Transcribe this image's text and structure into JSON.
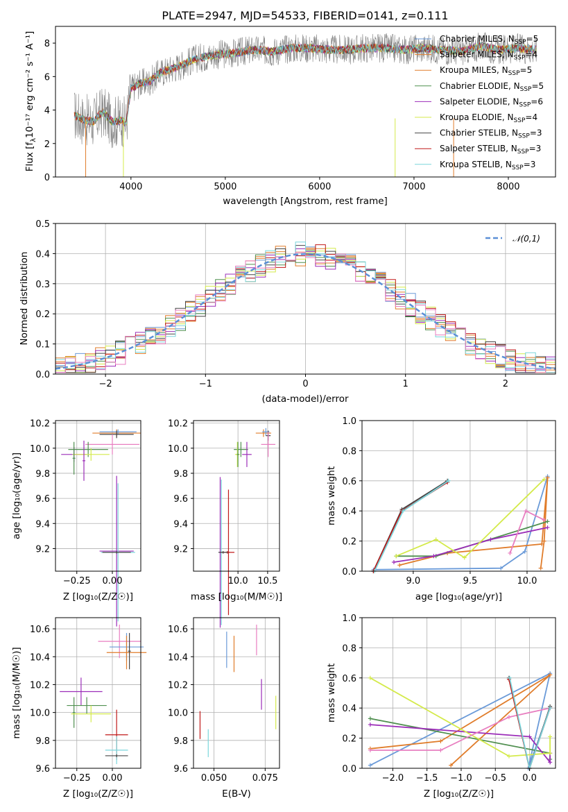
{
  "title": "PLATE=2947, MJD=54533, FIBERID=0141, z=0.111",
  "colors": {
    "Chabrier MILES": "#6a9ad8",
    "Salpeter MILES": "#e07c2a",
    "Kroupa MILES": "#e07c2a",
    "Chabrier ELODIE": "#4f8f4f",
    "Salpeter ELODIE": "#9b2cb8",
    "Kroupa ELODIE": "#d4ea4a",
    "Chabrier STELIB": "#444444",
    "Salpeter STELIB": "#c01818",
    "Kroupa STELIB": "#7ad6dc",
    "spectrum": "#808080",
    "normal": "#5b8fd6"
  },
  "chart_data": [
    {
      "id": "spectrum",
      "type": "line",
      "title": "PLATE=2947, MJD=54533, FIBERID=0141, z=0.111",
      "xlabel": "wavelength [Angstrom, rest frame]",
      "ylabel_main": "Flux [f",
      "ylabel_sub": "λ",
      "ylabel_tail": "10⁻¹⁷ erg cm⁻² s⁻¹ A⁻¹]",
      "xlim": [
        3200,
        8500
      ],
      "ylim": [
        0,
        9
      ],
      "xticks": [
        "4000",
        "5000",
        "6000",
        "7000",
        "8000"
      ],
      "yticks": [
        "0",
        "2",
        "4",
        "6",
        "8"
      ],
      "legend_position": "top-right",
      "legend": [
        {
          "prefix": "Chabrier MILES, N",
          "sub": "SSP",
          "suffix": "=5",
          "color": "#6a9ad8"
        },
        {
          "prefix": "Salpeter MILES, N",
          "sub": "SSP",
          "suffix": "=4",
          "color": "#e07c2a"
        },
        {
          "prefix": "Kroupa MILES, N",
          "sub": "SSP",
          "suffix": "=5",
          "color": "#e07c2a"
        },
        {
          "prefix": "Chabrier ELODIE, N",
          "sub": "SSP",
          "suffix": "=5",
          "color": "#4f8f4f"
        },
        {
          "prefix": "Salpeter ELODIE, N",
          "sub": "SSP",
          "suffix": "=6",
          "color": "#9b2cb8"
        },
        {
          "prefix": "Kroupa ELODIE, N",
          "sub": "SSP",
          "suffix": "=4",
          "color": "#d4ea4a"
        },
        {
          "prefix": "Chabrier STELIB, N",
          "sub": "SSP",
          "suffix": "=3",
          "color": "#444444"
        },
        {
          "prefix": "Salpeter STELIB, N",
          "sub": "SSP",
          "suffix": "=3",
          "color": "#c01818"
        },
        {
          "prefix": "Kroupa STELIB, N",
          "sub": "SSP",
          "suffix": "=3",
          "color": "#7ad6dc"
        }
      ],
      "data_envelope": {
        "x": [
          3400,
          3500,
          3600,
          3700,
          3800,
          3900,
          3950,
          4000,
          4100,
          4200,
          4300,
          4500,
          4700,
          4900,
          5100,
          5300,
          5500,
          5700,
          5900,
          6100,
          6300,
          6500,
          6700,
          6900,
          7100,
          7300,
          7500,
          7700,
          7900,
          8100,
          8300
        ],
        "y": [
          3.7,
          3.4,
          3.3,
          3.9,
          3.3,
          3.4,
          3.2,
          5.3,
          5.6,
          5.7,
          6.2,
          6.6,
          7.1,
          7.3,
          7.4,
          7.6,
          7.5,
          7.7,
          7.7,
          7.6,
          7.6,
          7.7,
          7.7,
          7.6,
          7.7,
          7.6,
          7.5,
          7.8,
          7.6,
          7.7,
          7.6
        ]
      }
    },
    {
      "id": "residuals",
      "type": "bar",
      "xlabel": "(data-model)/error",
      "ylabel": "Normed distribution",
      "xlim": [
        -2.5,
        2.5
      ],
      "ylim": [
        0,
        0.5
      ],
      "xticks": [
        "−2",
        "−1",
        "0",
        "1",
        "2"
      ],
      "yticks": [
        "0.0",
        "0.1",
        "0.2",
        "0.3",
        "0.4",
        "0.5"
      ],
      "legend_label": "𝒩(0,1)",
      "legend_position": "top-right",
      "bin_width": 0.1,
      "grid": true
    },
    {
      "id": "age_vs_Z",
      "type": "scatter",
      "xlabel": "Z [log₁₀(Z/Z☉)]",
      "ylabel": "age  [log₁₀(age/yr)]",
      "xlim": [
        -0.4,
        0.2
      ],
      "ylim": [
        9.02,
        10.22
      ],
      "xticks": [
        "−0.25",
        "0.00"
      ],
      "xtick_vals": [
        -0.25,
        0.0
      ],
      "yticks": [
        "9.2",
        "9.4",
        "9.6",
        "9.8",
        "10.0",
        "10.2"
      ],
      "ytick_vals": [
        9.2,
        9.4,
        9.6,
        9.8,
        10.0,
        10.2
      ],
      "points": [
        {
          "x": 0.03,
          "y": 10.12,
          "xerr": 0.17,
          "yerr": 0.03,
          "color": "#e07c2a"
        },
        {
          "x": 0.04,
          "y": 10.13,
          "xerr": 0.13,
          "yerr": 0.02,
          "color": "#6a9ad8"
        },
        {
          "x": 0.03,
          "y": 10.11,
          "xerr": 0.12,
          "yerr": 0.03,
          "color": "#444444"
        },
        {
          "x": 0.0,
          "y": 10.03,
          "xerr": 0.19,
          "yerr": 0.08,
          "color": "#e87ec0"
        },
        {
          "x": -0.17,
          "y": 9.99,
          "xerr": 0.14,
          "yerr": 0.06,
          "color": "#4f8f4f"
        },
        {
          "x": -0.27,
          "y": 9.95,
          "xerr": 0.09,
          "yerr": 0.06,
          "color": "#9b2cb8"
        },
        {
          "x": -0.15,
          "y": 9.95,
          "xerr": 0.13,
          "yerr": 0.05,
          "color": "#d4ea4a"
        },
        {
          "x": -0.27,
          "y": 9.92,
          "xerr": 0.01,
          "yerr": 0.13,
          "color": "#4f8f4f"
        },
        {
          "x": -0.2,
          "y": 9.9,
          "xerr": 0.01,
          "yerr": 0.16,
          "color": "#9b2cb8"
        },
        {
          "x": 0.03,
          "y": 9.18,
          "xerr": 0.12,
          "yerr": 0.6,
          "color": "#9b2cb8"
        },
        {
          "x": 0.04,
          "y": 9.17,
          "xerr": 0.12,
          "yerr": 0.55,
          "color": "#7ad6dc"
        },
        {
          "x": 0.03,
          "y": 9.17,
          "xerr": 0.1,
          "yerr": 0.01,
          "color": "#444444"
        }
      ]
    },
    {
      "id": "age_vs_mass",
      "type": "scatter",
      "xlabel": "mass [log₁₀(M/M☉)]",
      "ylabel": "",
      "xlim": [
        9.25,
        10.7
      ],
      "ylim": [
        9.02,
        10.22
      ],
      "xticks": [
        "10.0",
        "10.5"
      ],
      "xtick_vals": [
        10.0,
        10.5
      ],
      "yticks": [
        "9.2",
        "9.4",
        "9.6",
        "9.8",
        "10.0",
        "10.2"
      ],
      "ytick_vals": [
        9.2,
        9.4,
        9.6,
        9.8,
        10.0,
        10.2
      ],
      "points": [
        {
          "x": 10.43,
          "y": 10.12,
          "xerr": 0.13,
          "yerr": 0.03,
          "color": "#e07c2a"
        },
        {
          "x": 10.47,
          "y": 10.13,
          "xerr": 0.06,
          "yerr": 0.03,
          "color": "#6a9ad8"
        },
        {
          "x": 10.51,
          "y": 10.1,
          "xerr": 0.04,
          "yerr": 0.04,
          "color": "#444444"
        },
        {
          "x": 10.51,
          "y": 10.03,
          "xerr": 0.12,
          "yerr": 0.1,
          "color": "#e87ec0"
        },
        {
          "x": 10.05,
          "y": 9.99,
          "xerr": 0.12,
          "yerr": 0.06,
          "color": "#4f8f4f"
        },
        {
          "x": 10.15,
          "y": 9.95,
          "xerr": 0.08,
          "yerr": 0.1,
          "color": "#9b2cb8"
        },
        {
          "x": 9.99,
          "y": 9.95,
          "xerr": 0.04,
          "yerr": 0.1,
          "color": "#d4ea4a"
        },
        {
          "x": 10.0,
          "y": 9.95,
          "xerr": 0.02,
          "yerr": 0.1,
          "color": "#4f8f4f"
        },
        {
          "x": 9.7,
          "y": 9.17,
          "xerr": 0.02,
          "yerr": 0.6,
          "color": "#9b2cb8"
        },
        {
          "x": 9.72,
          "y": 9.17,
          "xerr": 0.02,
          "yerr": 0.58,
          "color": "#7ad6dc"
        },
        {
          "x": 9.84,
          "y": 9.17,
          "xerr": 0.02,
          "yerr": 0.5,
          "color": "#c01818"
        },
        {
          "x": 9.82,
          "y": 9.17,
          "xerr": 0.12,
          "yerr": 0.01,
          "color": "#c01818"
        },
        {
          "x": 9.75,
          "y": 9.17,
          "xerr": 0.08,
          "yerr": 0.01,
          "color": "#444444"
        }
      ]
    },
    {
      "id": "weight_vs_age",
      "type": "line",
      "xlabel": "age  [log₁₀(age/yr)]",
      "ylabel": "mass weight",
      "xlim": [
        8.55,
        10.25
      ],
      "ylim": [
        0,
        1
      ],
      "xticks": [
        "9.0",
        "9.5",
        "10.0"
      ],
      "xtick_vals": [
        9.0,
        9.5,
        10.0
      ],
      "yticks": [
        "0.0",
        "0.2",
        "0.4",
        "0.6",
        "0.8",
        "1.0"
      ],
      "ytick_vals": [
        0.0,
        0.2,
        0.4,
        0.6,
        0.8,
        1.0
      ],
      "series": [
        {
          "color": "#6a9ad8",
          "x": [
            8.65,
            9.77,
            9.98,
            10.18
          ],
          "y": [
            0.01,
            0.02,
            0.13,
            0.63
          ]
        },
        {
          "color": "#e07c2a",
          "x": [
            8.88,
            9.3,
            10.13,
            10.18
          ],
          "y": [
            0.04,
            0.12,
            0.18,
            0.62
          ]
        },
        {
          "color": "#e07c2a",
          "x": [
            10.12,
            10.15,
            10.18
          ],
          "y": [
            0.02,
            0.2,
            0.62
          ]
        },
        {
          "color": "#4f8f4f",
          "x": [
            8.85,
            9.2,
            10.18
          ],
          "y": [
            0.1,
            0.1,
            0.33
          ]
        },
        {
          "color": "#9b2cb8",
          "x": [
            8.83,
            9.18,
            9.68,
            10.18
          ],
          "y": [
            0.06,
            0.1,
            0.21,
            0.29
          ]
        },
        {
          "color": "#d4ea4a",
          "x": [
            8.85,
            9.2,
            9.45,
            10.15
          ],
          "y": [
            0.1,
            0.21,
            0.09,
            0.61
          ]
        },
        {
          "color": "#e87ec0",
          "x": [
            9.85,
            9.99,
            10.15
          ],
          "y": [
            0.12,
            0.4,
            0.34
          ]
        },
        {
          "color": "#444444",
          "x": [
            8.65,
            8.9,
            9.3
          ],
          "y": [
            0.0,
            0.41,
            0.6
          ]
        },
        {
          "color": "#c01818",
          "x": [
            8.65,
            8.9,
            9.3
          ],
          "y": [
            0.0,
            0.4,
            0.59
          ]
        },
        {
          "color": "#7ad6dc",
          "x": [
            8.66,
            8.91,
            9.31
          ],
          "y": [
            0.0,
            0.4,
            0.6
          ]
        }
      ]
    },
    {
      "id": "mass_vs_Z",
      "type": "scatter",
      "xlabel": "Z [log₁₀(Z/Z☉)]",
      "ylabel": "mass [log₁₀(M/M☉)]",
      "xlim": [
        -0.4,
        0.2
      ],
      "ylim": [
        9.6,
        10.68
      ],
      "xticks": [
        "−0.25",
        "0.00"
      ],
      "xtick_vals": [
        -0.25,
        0.0
      ],
      "yticks": [
        "9.6",
        "9.8",
        "10.0",
        "10.2",
        "10.4",
        "10.6"
      ],
      "ytick_vals": [
        9.6,
        9.8,
        10.0,
        10.2,
        10.4,
        10.6
      ],
      "points": [
        {
          "x": 0.05,
          "y": 10.51,
          "xerr": 0.15,
          "yerr": 0.12,
          "color": "#e87ec0"
        },
        {
          "x": 0.1,
          "y": 10.47,
          "xerr": 0.12,
          "yerr": 0.1,
          "color": "#6a9ad8"
        },
        {
          "x": 0.1,
          "y": 10.43,
          "xerr": 0.14,
          "yerr": 0.12,
          "color": "#e07c2a"
        },
        {
          "x": 0.12,
          "y": 10.44,
          "xerr": 0.01,
          "yerr": 0.13,
          "color": "#444444"
        },
        {
          "x": -0.22,
          "y": 10.15,
          "xerr": 0.15,
          "yerr": 0.1,
          "color": "#9b2cb8"
        },
        {
          "x": -0.18,
          "y": 10.05,
          "xerr": 0.14,
          "yerr": 0.06,
          "color": "#4f8f4f"
        },
        {
          "x": -0.27,
          "y": 10.0,
          "xerr": 0.01,
          "yerr": 0.11,
          "color": "#4f8f4f"
        },
        {
          "x": -0.15,
          "y": 9.99,
          "xerr": 0.14,
          "yerr": 0.06,
          "color": "#d4ea4a"
        },
        {
          "x": 0.03,
          "y": 9.84,
          "xerr": 0.08,
          "yerr": 0.18,
          "color": "#c01818"
        },
        {
          "x": 0.03,
          "y": 9.73,
          "xerr": 0.08,
          "yerr": 0.1,
          "color": "#7ad6dc"
        },
        {
          "x": 0.03,
          "y": 9.69,
          "xerr": 0.08,
          "yerr": 0.01,
          "color": "#444444"
        }
      ]
    },
    {
      "id": "mass_vs_EBV",
      "type": "scatter",
      "xlabel": "E(B-V)",
      "ylabel": "",
      "xlim": [
        0.04,
        0.082
      ],
      "ylim": [
        9.6,
        10.68
      ],
      "xticks": [
        "0.050",
        "0.075"
      ],
      "xtick_vals": [
        0.05,
        0.075
      ],
      "yticks": [
        "9.6",
        "9.8",
        "10.0",
        "10.2",
        "10.4",
        "10.6"
      ],
      "ytick_vals": [
        9.6,
        9.8,
        10.0,
        10.2,
        10.4,
        10.6
      ],
      "points": [
        {
          "x": 0.0562,
          "y": 10.45,
          "xerr": 0,
          "yerr": 0.13,
          "color": "#6a9ad8"
        },
        {
          "x": 0.0598,
          "y": 10.42,
          "xerr": 0,
          "yerr": 0.13,
          "color": "#e07c2a"
        },
        {
          "x": 0.0708,
          "y": 10.52,
          "xerr": 0,
          "yerr": 0.11,
          "color": "#e87ec0"
        },
        {
          "x": 0.0732,
          "y": 10.13,
          "xerr": 0,
          "yerr": 0.11,
          "color": "#9b2cb8"
        },
        {
          "x": 0.0802,
          "y": 10.0,
          "xerr": 0,
          "yerr": 0.12,
          "color": "#d4ea4a"
        },
        {
          "x": 0.0432,
          "y": 9.91,
          "xerr": 0,
          "yerr": 0.1,
          "color": "#c01818"
        },
        {
          "x": 0.0472,
          "y": 9.78,
          "xerr": 0,
          "yerr": 0.1,
          "color": "#7ad6dc"
        }
      ]
    },
    {
      "id": "weight_vs_Z",
      "type": "line",
      "xlabel": "Z [log₁₀(Z/Z☉)]",
      "ylabel": "mass weight",
      "xlim": [
        -2.45,
        0.38
      ],
      "ylim": [
        0,
        1
      ],
      "xticks": [
        "−2.0",
        "−1.5",
        "−1.0",
        "−0.5",
        "0.0"
      ],
      "xtick_vals": [
        -2.0,
        -1.5,
        -1.0,
        -0.5,
        0.0
      ],
      "yticks": [
        "0.0",
        "0.2",
        "0.4",
        "0.6",
        "0.8",
        "1.0"
      ],
      "ytick_vals": [
        0.0,
        0.2,
        0.4,
        0.6,
        0.8,
        1.0
      ],
      "series": [
        {
          "color": "#6a9ad8",
          "x": [
            -2.33,
            0.3,
            -0.02,
            0.3
          ],
          "y": [
            0.02,
            0.63,
            0.0,
            0.4
          ]
        },
        {
          "color": "#e07c2a",
          "x": [
            -2.33,
            -1.3,
            0.3,
            -1.15,
            0.3
          ],
          "y": [
            0.13,
            0.18,
            0.62,
            0.02,
            0.62
          ]
        },
        {
          "color": "#4f8f4f",
          "x": [
            -2.33,
            0.3,
            0.3
          ],
          "y": [
            0.33,
            0.1,
            0.06
          ]
        },
        {
          "color": "#9b2cb8",
          "x": [
            -2.33,
            0.0,
            0.3,
            0.3
          ],
          "y": [
            0.29,
            0.21,
            0.04,
            0.1
          ]
        },
        {
          "color": "#d4ea4a",
          "x": [
            -2.33,
            -0.3,
            0.3,
            0.3
          ],
          "y": [
            0.6,
            0.08,
            0.1,
            0.21
          ]
        },
        {
          "color": "#e87ec0",
          "x": [
            -2.33,
            -1.3,
            -0.3,
            0.3
          ],
          "y": [
            0.12,
            0.12,
            0.34,
            0.4
          ]
        },
        {
          "color": "#444444",
          "x": [
            -0.3,
            0.0,
            0.3
          ],
          "y": [
            0.6,
            0.0,
            0.41
          ]
        },
        {
          "color": "#c01818",
          "x": [
            -0.3,
            0.0,
            0.3
          ],
          "y": [
            0.59,
            0.0,
            0.4
          ]
        },
        {
          "color": "#7ad6dc",
          "x": [
            -0.29,
            0.0,
            0.3
          ],
          "y": [
            0.6,
            0.0,
            0.4
          ]
        }
      ]
    }
  ]
}
